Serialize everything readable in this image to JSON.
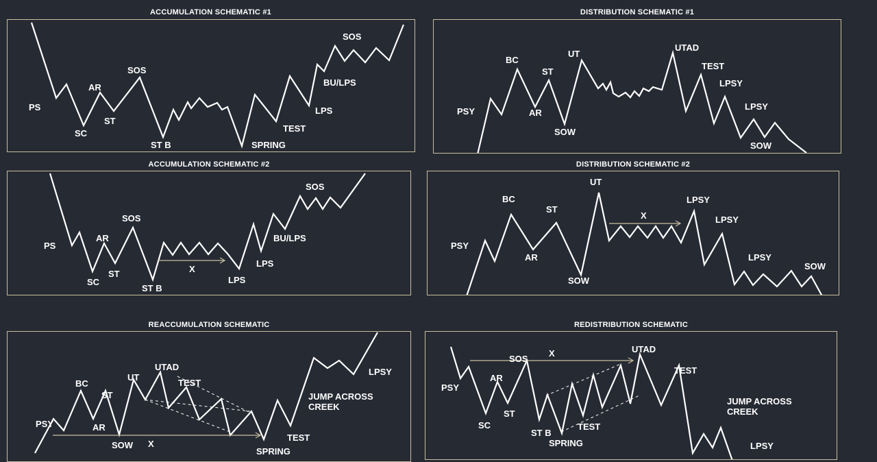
{
  "colors": {
    "background": "#262a33",
    "border": "#c9bfa0",
    "line": "#ffffff",
    "arrow": "#c9bfa0"
  },
  "panels": {
    "acc1": {
      "title": "ACCUMULATION SCHEMATIC #1",
      "labels": {
        "ps": "PS",
        "sc": "SC",
        "ar": "AR",
        "st": "ST",
        "sos1": "SOS",
        "stb": "ST B",
        "spring": "SPRING",
        "test": "TEST",
        "lps": "LPS",
        "bulps": "BU/LPS",
        "sos2": "SOS"
      }
    },
    "dist1": {
      "title": "DISTRIBUTION SCHEMATIC #1",
      "labels": {
        "psy": "PSY",
        "bc": "BC",
        "ar": "AR",
        "st": "ST",
        "sow1": "SOW",
        "ut": "UT",
        "utad": "UTAD",
        "test": "TEST",
        "lpsy1": "LPSY",
        "lpsy2": "LPSY",
        "sow2": "SOW"
      }
    },
    "acc2": {
      "title": "ACCUMULATION SCHEMATIC #2",
      "labels": {
        "ps": "PS",
        "sc": "SC",
        "ar": "AR",
        "st": "ST",
        "sos1": "SOS",
        "stb": "ST B",
        "x": "X",
        "lps1": "LPS",
        "lps2": "LPS",
        "bulps": "BU/LPS",
        "sos2": "SOS"
      }
    },
    "dist2": {
      "title": "DISTRIBUTION SCHEMATIC #2",
      "labels": {
        "psy": "PSY",
        "bc": "BC",
        "ar": "AR",
        "st": "ST",
        "sow1": "SOW",
        "ut": "UT",
        "x": "X",
        "lpsy1": "LPSY",
        "lpsy2": "LPSY",
        "lpsy3": "LPSY",
        "sow2": "SOW"
      }
    },
    "reacc": {
      "title": "REACCUMULATION SCHEMATIC",
      "labels": {
        "psy": "PSY",
        "bc": "BC",
        "ar": "AR",
        "st": "ST",
        "sow": "SOW",
        "ut": "UT",
        "utad": "UTAD",
        "test1": "TEST",
        "x": "X",
        "spring": "SPRING",
        "test2": "TEST",
        "jump1": "JUMP ACROSS",
        "jump2": "CREEK",
        "lpsy": "LPSY"
      }
    },
    "redist": {
      "title": "REDISTRIBUTION SCHEMATIC",
      "labels": {
        "psy": "PSY",
        "sc": "SC",
        "ar": "AR",
        "st": "ST",
        "sos": "SOS",
        "x": "X",
        "stb": "ST B",
        "spring": "SPRING",
        "test1": "TEST",
        "utad": "UTAD",
        "test2": "TEST",
        "jump1": "JUMP ACROSS",
        "jump2": "CREEK",
        "lpsy": "LPSY"
      }
    }
  }
}
